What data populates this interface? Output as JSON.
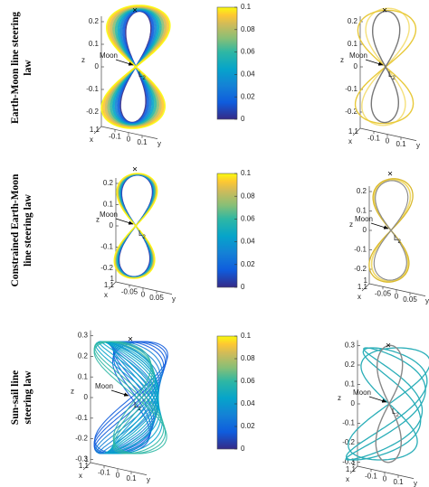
{
  "rows": [
    {
      "label": [
        "Earth-Moon line steering",
        "law"
      ],
      "left": {
        "zlabel": "z",
        "zticks": [
          0.2,
          0.1,
          0,
          -0.1,
          -0.2
        ],
        "xlabel": "x",
        "xticks": [
          1.1
        ],
        "ylabel": "y",
        "yticks": [
          -0.1,
          0,
          0.1
        ],
        "moon": "Moon",
        "l2": "L",
        "l2_sub": "2"
      },
      "colorbar": {
        "lim": [
          0,
          0.1
        ],
        "ticks": [
          0,
          0.02,
          0.04,
          0.06,
          0.08,
          0.1
        ]
      },
      "right": {
        "zlabel": "z",
        "zticks": [
          0.2,
          0.1,
          0,
          -0.1,
          -0.2
        ],
        "xlabel": "x",
        "xticks": [
          1.1
        ],
        "ylabel": "y",
        "yticks": [
          -0.1,
          0,
          0.1
        ],
        "moon": "Moon",
        "l2": "L",
        "l2_sub": "2"
      }
    },
    {
      "label": [
        "Constrained Earth-Moon",
        "line steering law"
      ],
      "left": {
        "zlabel": "z",
        "zticks": [
          0.2,
          0.1,
          0,
          -0.1,
          -0.2
        ],
        "xlabel": "x",
        "xticks": [
          1,
          1.1
        ],
        "ylabel": "y",
        "yticks": [
          -0.05,
          0,
          0.05
        ],
        "moon": "Moon",
        "l2": "L",
        "l2_sub": "2"
      },
      "colorbar": {
        "lim": [
          0,
          0.1
        ],
        "ticks": [
          0,
          0.02,
          0.04,
          0.06,
          0.08,
          0.1
        ]
      },
      "right": {
        "zlabel": "z",
        "zticks": [
          0.2,
          0.1,
          0,
          -0.1,
          -0.2
        ],
        "xlabel": "x",
        "xticks": [
          1,
          1.1
        ],
        "ylabel": "y",
        "yticks": [
          -0.05,
          0,
          0.05
        ],
        "moon": "Moon",
        "l2": "L",
        "l2_sub": "2"
      }
    },
    {
      "label": [
        "Sun-sail line",
        "steering law"
      ],
      "left": {
        "zlabel": "z",
        "zticks": [
          0.3,
          0.2,
          0.1,
          0,
          -0.1,
          -0.2,
          -0.3
        ],
        "xlabel": "x",
        "xticks": [
          1,
          1.1
        ],
        "ylabel": "y",
        "yticks": [
          -0.1,
          0,
          0.1
        ],
        "moon": "Moon",
        "l2": "L",
        "l2_sub": "2"
      },
      "colorbar": {
        "lim": [
          0,
          0.1
        ],
        "ticks": [
          0,
          0.02,
          0.04,
          0.06,
          0.08,
          0.1
        ]
      },
      "right": {
        "zlabel": "z",
        "zticks": [
          0.3,
          0.2,
          0.1,
          0,
          -0.1,
          -0.2,
          -0.3
        ],
        "xlabel": "x",
        "xticks": [
          1,
          1.1
        ],
        "ylabel": "y",
        "yticks": [
          -0.1,
          0,
          0.1
        ],
        "moon": "Moon",
        "l2": "L",
        "l2_sub": "2"
      }
    }
  ]
}
